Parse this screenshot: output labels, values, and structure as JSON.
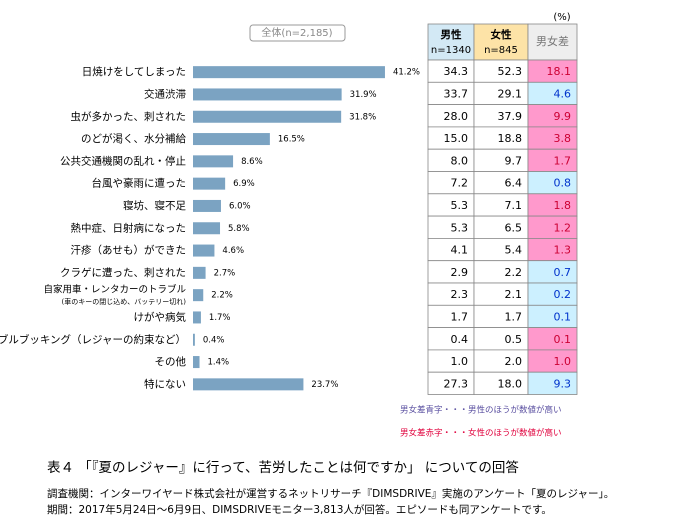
{
  "chart_data": {
    "type": "bar",
    "overall_label": "全体(n=2,185)",
    "unit": "(%)",
    "categories": [
      "日焼けをしてしまった",
      "交通渋滞",
      "虫が多かった、刺された",
      "のどが渇く、水分補給",
      "公共交通機関の乱れ・停止",
      "台風や豪雨に遭った",
      "寝坊、寝不足",
      "熱中症、日射病になった",
      "汗疹（あせも）ができた",
      "クラゲに遭った、刺された",
      "自家用車・レンタカーのトラブル",
      "けがや病気",
      "ダブルブッキング（レジャーの約束など）",
      "その他",
      "特にない"
    ],
    "subnote": "(車のキーの閉じ込め、バッテリー切れ)",
    "values": [
      41.2,
      31.9,
      31.8,
      16.5,
      8.6,
      6.9,
      6.0,
      5.8,
      4.6,
      2.7,
      2.2,
      1.7,
      0.4,
      1.4,
      23.7
    ],
    "value_labels": [
      "41.2%",
      "31.9%",
      "31.8%",
      "16.5%",
      "8.6%",
      "6.9%",
      "6.0%",
      "5.8%",
      "4.6%",
      "2.7%",
      "2.2%",
      "1.7%",
      "0.4%",
      "1.4%",
      "23.7%"
    ],
    "color": "#7ba3c2",
    "xlim": [
      0,
      44
    ],
    "table": {
      "headers": [
        {
          "label": "男性",
          "n": "n=1340",
          "color": "#d3e9f5"
        },
        {
          "label": "女性",
          "n": "n=845",
          "color": "#fde3a7"
        },
        {
          "label": "男女差",
          "color": "#eeeeee"
        }
      ],
      "male": [
        "34.3",
        "33.7",
        "28.0",
        "15.0",
        "8.0",
        "7.2",
        "5.3",
        "5.3",
        "4.1",
        "2.9",
        "2.3",
        "1.7",
        "0.4",
        "1.0",
        "27.3"
      ],
      "female": [
        "52.3",
        "29.1",
        "37.9",
        "18.8",
        "9.7",
        "6.4",
        "7.1",
        "6.5",
        "5.4",
        "2.2",
        "2.1",
        "1.7",
        "0.5",
        "2.0",
        "18.0"
      ],
      "diff": [
        "18.1",
        "4.6",
        "9.9",
        "3.8",
        "1.7",
        "0.8",
        "1.8",
        "1.2",
        "1.3",
        "0.7",
        "0.2",
        "0.1",
        "0.1",
        "1.0",
        "9.3"
      ],
      "diff_side": [
        "female",
        "male",
        "female",
        "female",
        "female",
        "male",
        "female",
        "female",
        "female",
        "male",
        "male",
        "male",
        "female",
        "female",
        "male"
      ],
      "side_colors": {
        "female": {
          "fill": "#ff99cc",
          "text": "#cc0033"
        },
        "male": {
          "fill": "#ccf0ff",
          "text": "#0033cc"
        }
      }
    },
    "notes": [
      {
        "text": "男女差青字・・・男性のほうが数値が高い",
        "color": "#5a4fa0"
      },
      {
        "text": "男女差赤字・・・女性のほうが数値が高い",
        "color": "#e0003c"
      }
    ],
    "title": "表４ 「『夏のレジャー』に行って、苦労したことは何ですか」 についての回答",
    "footnotes": [
      "調査機関：インターワイヤード株式会社が運営するネットリサーチ『DIMSDRIVE』実施のアンケート「夏のレジャー」。",
      "期間：2017年5月24日～6月9日、DIMSDRIVEモニター3,813人が回答。エピソードも同アンケートです。"
    ]
  }
}
